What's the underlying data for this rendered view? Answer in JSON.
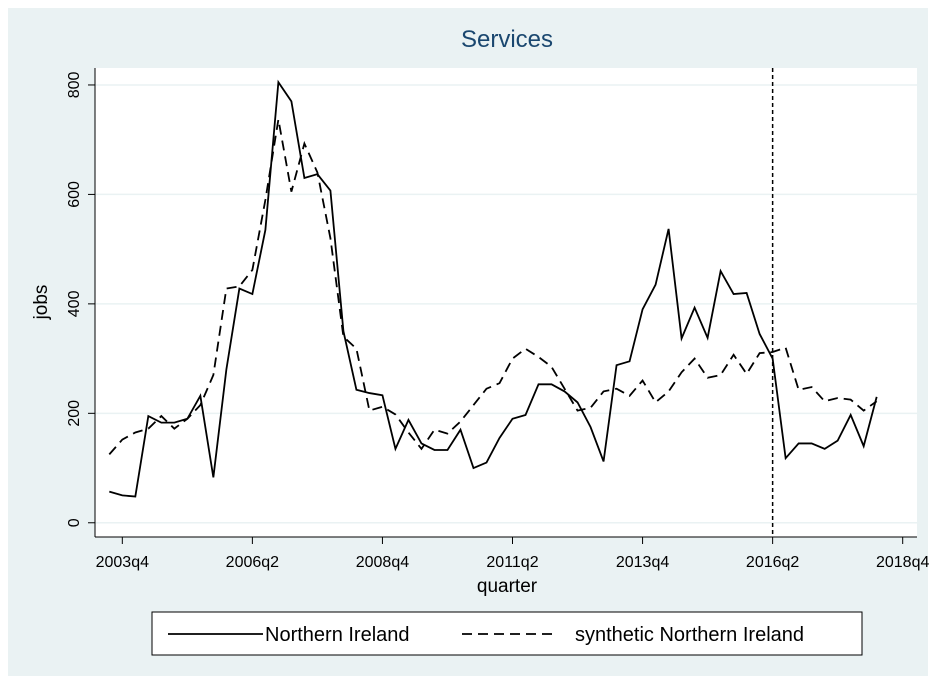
{
  "chart_data": {
    "type": "line",
    "title": "Services",
    "x_label": "quarter",
    "y_label": "jobs",
    "x": [
      174,
      175,
      176,
      177,
      178,
      179,
      180,
      181,
      182,
      183,
      184,
      185,
      186,
      187,
      188,
      189,
      190,
      191,
      192,
      193,
      194,
      195,
      196,
      197,
      198,
      199,
      200,
      201,
      202,
      203,
      204,
      205,
      206,
      207,
      208,
      209,
      210,
      211,
      212,
      213,
      214,
      215,
      216,
      217,
      218,
      219,
      220,
      221,
      222,
      223,
      224,
      225,
      226,
      227,
      228,
      229,
      230,
      231,
      232,
      233
    ],
    "series": [
      {
        "name": "Northern Ireland",
        "color": "#000000",
        "dash": "solid",
        "values": [
          57,
          50,
          48,
          195,
          183,
          183,
          190,
          232,
          83,
          280,
          428,
          418,
          535,
          805,
          770,
          630,
          637,
          607,
          350,
          243,
          237,
          233,
          135,
          188,
          145,
          133,
          133,
          170,
          100,
          110,
          155,
          190,
          197,
          253,
          253,
          240,
          220,
          175,
          112,
          288,
          295,
          390,
          435,
          537,
          337,
          393,
          338,
          460,
          418,
          420,
          345,
          300,
          118,
          145,
          145,
          135,
          150,
          197,
          140,
          230
        ]
      },
      {
        "name": "synthetic Northern Ireland",
        "color": "#000000",
        "dash": "dashed",
        "values": [
          125,
          152,
          165,
          172,
          195,
          172,
          190,
          215,
          270,
          428,
          432,
          462,
          590,
          737,
          605,
          693,
          640,
          520,
          340,
          318,
          205,
          212,
          198,
          165,
          135,
          170,
          163,
          185,
          215,
          245,
          255,
          300,
          318,
          303,
          285,
          245,
          205,
          210,
          240,
          245,
          232,
          260,
          220,
          240,
          275,
          300,
          265,
          270,
          307,
          272,
          310,
          312,
          320,
          243,
          248,
          222,
          228,
          225,
          205,
          222
        ]
      }
    ],
    "vline": 225,
    "xlim": [
      172.9,
      236.1
    ],
    "xticks": [
      {
        "value": 175,
        "label": "2003q4"
      },
      {
        "value": 185,
        "label": "2006q2"
      },
      {
        "value": 195,
        "label": "2008q4"
      },
      {
        "value": 205,
        "label": "2011q2"
      },
      {
        "value": 215,
        "label": "2013q4"
      },
      {
        "value": 225,
        "label": "2016q2"
      },
      {
        "value": 235,
        "label": "2018q4"
      }
    ],
    "ylim": [
      -26,
      831
    ],
    "yticks": [
      0,
      200,
      400,
      600,
      800
    ],
    "grid": true,
    "legend": "bottom"
  }
}
